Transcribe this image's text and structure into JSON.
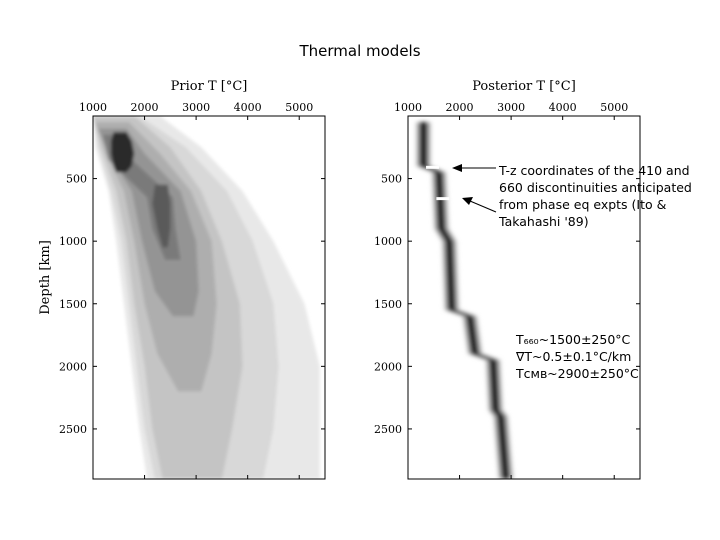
{
  "page": {
    "title": "Thermal models"
  },
  "annotations": {
    "discontinuities": "T-z coordinates of the 410 and\n660 discontinuities anticipated\nfrom phase eq expts (Ito &\nTakahashi '89)",
    "stats_line1": "T₆₆₀~1500±250°C",
    "stats_line2": "∇T~0.5±0.1°C/km",
    "stats_line3": "Tᴄᴍʙ~2900±250°C"
  },
  "chart_data": [
    {
      "type": "heatmap",
      "title": "Prior T [°C]",
      "xlabel": "Prior T [°C]",
      "ylabel": "Depth [km]",
      "xlim": [
        1000,
        5500
      ],
      "ylim": [
        0,
        2900
      ],
      "x_ticks": [
        "1000",
        "2000",
        "3000",
        "4000",
        "5000"
      ],
      "y_ticks": [
        "500",
        "1000",
        "1500",
        "2000",
        "2500"
      ],
      "x_tick_values": [
        1000,
        2000,
        3000,
        4000,
        5000
      ],
      "y_tick_values": [
        500,
        1000,
        1500,
        2000,
        2500
      ],
      "grid": false,
      "contours": [
        {
          "level": 1,
          "color": "#e8e8e8",
          "depth": [
            0,
            250,
            600,
            1000,
            1500,
            2000,
            2500,
            2900
          ],
          "t_min": [
            1000,
            1050,
            1300,
            1450,
            1600,
            1750,
            1900,
            2050
          ],
          "t_max": [
            2300,
            3100,
            3900,
            4500,
            5100,
            5400,
            5400,
            5400
          ]
        },
        {
          "level": 2,
          "color": "#d8d8d8",
          "depth": [
            0,
            250,
            600,
            1000,
            1500,
            2000,
            2500,
            2900
          ],
          "t_min": [
            1000,
            1100,
            1350,
            1550,
            1700,
            1850,
            2000,
            2200
          ],
          "t_max": [
            1900,
            2800,
            3600,
            4100,
            4500,
            4600,
            4500,
            4300
          ]
        },
        {
          "level": 3,
          "color": "#c4c4c4",
          "depth": [
            0,
            250,
            600,
            1000,
            1500,
            2000,
            2500,
            2900
          ],
          "t_min": [
            1000,
            1150,
            1450,
            1650,
            1800,
            2000,
            2150,
            2350
          ],
          "t_max": [
            1800,
            2500,
            3100,
            3500,
            3850,
            3900,
            3700,
            3500
          ]
        },
        {
          "level": 4,
          "color": "#aeaeae",
          "depth": [
            50,
            300,
            600,
            1000,
            1500,
            1900,
            2200
          ],
          "t_min": [
            1050,
            1250,
            1600,
            1800,
            2000,
            2250,
            2650
          ],
          "t_max": [
            1700,
            2300,
            2900,
            3300,
            3400,
            3300,
            3100
          ]
        },
        {
          "level": 5,
          "color": "#949494",
          "depth": [
            100,
            300,
            600,
            1000,
            1400,
            1600
          ],
          "t_min": [
            1100,
            1300,
            1750,
            1950,
            2200,
            2550
          ],
          "t_max": [
            1650,
            2000,
            2700,
            3000,
            3050,
            2950
          ]
        },
        {
          "level": 6,
          "color": "#7a7a7a",
          "depth": [
            150,
            350,
            650,
            900,
            1150
          ],
          "t_min": [
            1200,
            1300,
            2050,
            2150,
            2400
          ],
          "t_max": [
            1550,
            1750,
            2550,
            2600,
            2700
          ]
        },
        {
          "level": 7,
          "color": "#5a5a5a",
          "depth": [
            550,
            700,
            900,
            1050
          ],
          "t_min": [
            2200,
            2150,
            2250,
            2350
          ],
          "t_max": [
            2450,
            2500,
            2500,
            2450
          ]
        },
        {
          "level": 8,
          "color": "#2a2a2a",
          "depth": [
            130,
            200,
            300,
            400,
            450
          ],
          "t_min": [
            1400,
            1350,
            1350,
            1400,
            1450
          ],
          "t_max": [
            1650,
            1750,
            1800,
            1750,
            1650
          ]
        }
      ]
    },
    {
      "type": "heatmap",
      "title": "Posterior T [°C]",
      "xlabel": "Posterior T [°C]",
      "ylabel": "",
      "xlim": [
        1000,
        5500
      ],
      "ylim": [
        0,
        2900
      ],
      "x_ticks": [
        "1000",
        "2000",
        "3000",
        "4000",
        "5000"
      ],
      "y_ticks": [
        "500",
        "1000",
        "1500",
        "2000",
        "2500"
      ],
      "x_tick_values": [
        1000,
        2000,
        3000,
        4000,
        5000
      ],
      "y_tick_values": [
        500,
        1000,
        1500,
        2000,
        2500
      ],
      "grid": false,
      "band": {
        "depth": [
          50,
          400,
          450,
          900,
          1000,
          1550,
          1600,
          1900,
          1950,
          2350,
          2400,
          2900
        ],
        "t_center": [
          1300,
          1300,
          1600,
          1650,
          1800,
          1850,
          2200,
          2300,
          2650,
          2700,
          2800,
          2900
        ]
      },
      "markers": [
        {
          "depth": 410,
          "t_min": 1350,
          "t_max": 1600
        },
        {
          "depth": 660,
          "t_min": 1550,
          "t_max": 1800
        }
      ]
    }
  ]
}
